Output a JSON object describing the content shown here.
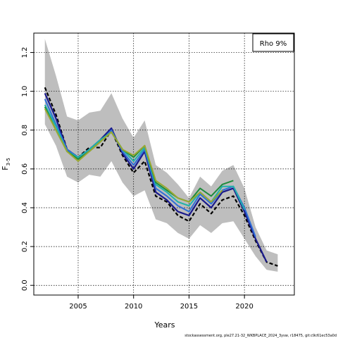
{
  "chart_data": {
    "type": "line",
    "xlabel": "Years",
    "ylabel_main": "F",
    "ylabel_sub": "3-5",
    "xlim": [
      2001,
      2024.5
    ],
    "ylim": [
      -0.05,
      1.3
    ],
    "xticks": [
      2005,
      2010,
      2015,
      2020
    ],
    "yticks": [
      0.0,
      0.2,
      0.4,
      0.6,
      0.8,
      1.0,
      1.2
    ],
    "ytick_labels": [
      "0.0",
      "0.2",
      "0.4",
      "0.6",
      "0.8",
      "1.0",
      "1.2"
    ],
    "grid": true,
    "legend": {
      "placement": "top-right",
      "text": "Rho 9%"
    },
    "footer": "stockassessment.org, ple27.21-32_WKBPLACE_2024_3ysw, r18475, git:c9c61ec53a0d",
    "confidence_band": {
      "color": "#bebebe",
      "x": [
        2002,
        2003,
        2004,
        2005,
        2006,
        2007,
        2008,
        2009,
        2010,
        2011,
        2012,
        2013,
        2014,
        2015,
        2016,
        2017,
        2018,
        2019,
        2020,
        2021,
        2022,
        2023
      ],
      "upper": [
        1.27,
        1.08,
        0.87,
        0.85,
        0.89,
        0.9,
        0.99,
        0.86,
        0.76,
        0.85,
        0.62,
        0.58,
        0.52,
        0.45,
        0.56,
        0.51,
        0.59,
        0.62,
        0.5,
        0.3,
        0.18,
        0.16
      ],
      "lower": [
        0.83,
        0.72,
        0.56,
        0.53,
        0.57,
        0.56,
        0.64,
        0.53,
        0.46,
        0.49,
        0.34,
        0.32,
        0.27,
        0.24,
        0.31,
        0.27,
        0.32,
        0.33,
        0.24,
        0.15,
        0.08,
        0.07
      ]
    },
    "series": [
      {
        "color": "#000000",
        "dashed": true,
        "width": 2.2,
        "x": [
          2002,
          2003,
          2004,
          2005,
          2006,
          2007,
          2008,
          2009,
          2010,
          2011,
          2012,
          2013,
          2014,
          2015,
          2016,
          2017,
          2018,
          2019,
          2020,
          2021,
          2022,
          2023
        ],
        "values": [
          1.02,
          0.88,
          0.7,
          0.66,
          0.71,
          0.71,
          0.8,
          0.67,
          0.58,
          0.64,
          0.46,
          0.43,
          0.36,
          0.33,
          0.42,
          0.37,
          0.44,
          0.46,
          0.36,
          0.23,
          0.12,
          0.1
        ]
      },
      {
        "color": "#1a1a8c",
        "dashed": false,
        "width": 2.2,
        "x": [
          2002,
          2003,
          2004,
          2005,
          2006,
          2007,
          2008,
          2009,
          2010,
          2011,
          2012,
          2013,
          2014,
          2015,
          2016,
          2017,
          2018,
          2019,
          2020,
          2021,
          2022
        ],
        "values": [
          0.99,
          0.86,
          0.7,
          0.66,
          0.7,
          0.75,
          0.81,
          0.68,
          0.6,
          0.69,
          0.48,
          0.44,
          0.38,
          0.36,
          0.45,
          0.4,
          0.48,
          0.5,
          0.38,
          0.24,
          0.12
        ]
      },
      {
        "color": "#2f6fd8",
        "dashed": false,
        "width": 2.0,
        "x": [
          2002,
          2003,
          2004,
          2005,
          2006,
          2007,
          2008,
          2009,
          2010,
          2011,
          2012,
          2013,
          2014,
          2015,
          2016,
          2017,
          2018,
          2019,
          2020,
          2021
        ],
        "values": [
          0.96,
          0.83,
          0.7,
          0.66,
          0.7,
          0.74,
          0.8,
          0.69,
          0.62,
          0.7,
          0.5,
          0.46,
          0.41,
          0.38,
          0.47,
          0.42,
          0.49,
          0.51,
          0.4,
          0.25
        ]
      },
      {
        "color": "#20b2aa",
        "dashed": false,
        "width": 2.0,
        "x": [
          2002,
          2003,
          2004,
          2005,
          2006,
          2007,
          2008,
          2009,
          2010,
          2011,
          2012,
          2013,
          2014,
          2015,
          2016,
          2017,
          2018,
          2019,
          2020
        ],
        "values": [
          0.93,
          0.82,
          0.69,
          0.66,
          0.7,
          0.75,
          0.79,
          0.7,
          0.64,
          0.71,
          0.52,
          0.48,
          0.43,
          0.41,
          0.48,
          0.43,
          0.51,
          0.51,
          0.39
        ]
      },
      {
        "color": "#1e8c3c",
        "dashed": false,
        "width": 2.0,
        "x": [
          2002,
          2003,
          2004,
          2005,
          2006,
          2007,
          2008,
          2009,
          2010,
          2011,
          2012,
          2013,
          2014,
          2015,
          2016,
          2017,
          2018,
          2019
        ],
        "values": [
          0.92,
          0.8,
          0.69,
          0.65,
          0.69,
          0.74,
          0.79,
          0.7,
          0.66,
          0.72,
          0.53,
          0.49,
          0.45,
          0.43,
          0.5,
          0.46,
          0.52,
          0.54
        ]
      },
      {
        "color": "#9aa832",
        "dashed": false,
        "width": 2.0,
        "x": [
          2002,
          2003,
          2004,
          2005,
          2006,
          2007,
          2008,
          2009,
          2010,
          2011,
          2012,
          2013,
          2014,
          2015,
          2016,
          2017,
          2018
        ],
        "values": [
          0.91,
          0.8,
          0.69,
          0.64,
          0.69,
          0.74,
          0.79,
          0.7,
          0.67,
          0.72,
          0.54,
          0.5,
          0.45,
          0.43,
          0.48,
          0.43,
          0.49
        ]
      }
    ]
  }
}
